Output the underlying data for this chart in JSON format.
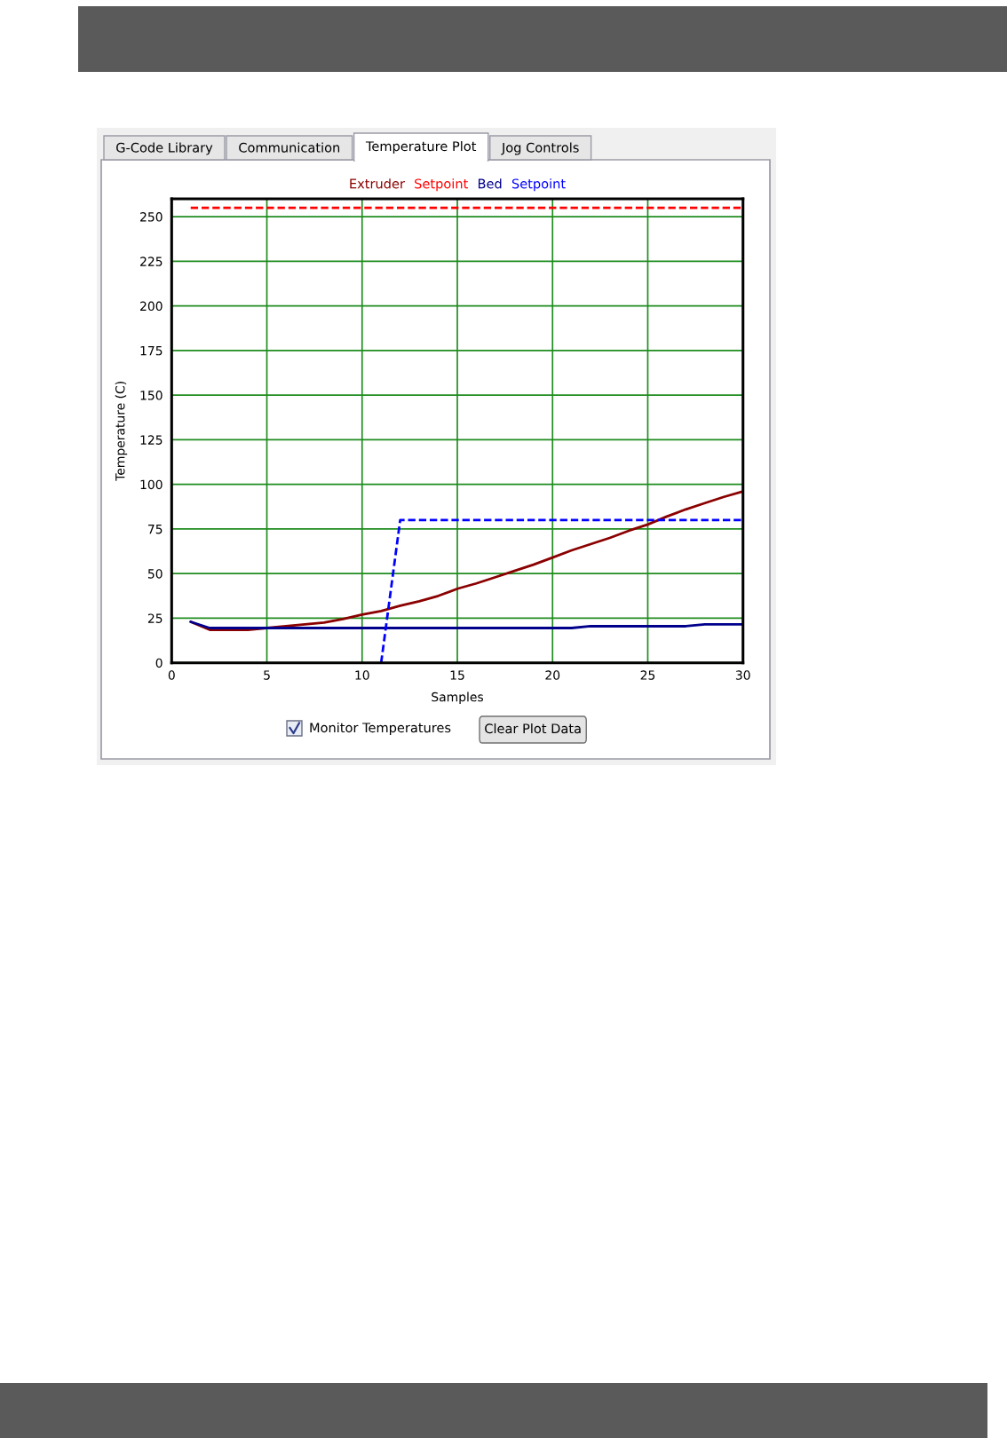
{
  "chart_data": {
    "type": "line",
    "xlabel": "Samples",
    "ylabel": "Temperature (C)",
    "xlim": [
      0,
      30
    ],
    "ylim": [
      0,
      260
    ],
    "xticks": [
      0,
      5,
      10,
      15,
      20,
      25,
      30
    ],
    "yticks": [
      0,
      25,
      50,
      75,
      100,
      125,
      150,
      175,
      200,
      225,
      250
    ],
    "grid": true,
    "legend": "top",
    "annotations": [
      "G-Code Library",
      "Communication",
      "Temperature Plot",
      "Jog Controls",
      "Monitor Temperatures",
      "Clear Plot Data"
    ],
    "series": [
      {
        "name": "Extruder",
        "color": "#8b0000",
        "line_style": "solid",
        "x": [
          1,
          2,
          3,
          4,
          5,
          6,
          7,
          8,
          9,
          10,
          11,
          12,
          13,
          14,
          15,
          16,
          17,
          18,
          19,
          20,
          21,
          22,
          23,
          24,
          25,
          26,
          27,
          28,
          29,
          30
        ],
        "values": [
          23,
          18.5,
          18.5,
          18.5,
          19.5,
          20.5,
          21.5,
          22.5,
          24.5,
          27,
          29,
          32,
          34.5,
          37.5,
          41.5,
          44.5,
          48,
          51.5,
          55,
          59,
          63,
          66.5,
          70,
          74,
          77.5,
          82,
          86,
          89.5,
          93,
          96
        ]
      },
      {
        "name": "Setpoint",
        "color": "#ff0000",
        "line_style": "dashed",
        "x": [
          1,
          2,
          3,
          4,
          5,
          6,
          7,
          8,
          9,
          10,
          11,
          12,
          13,
          14,
          15,
          16,
          17,
          18,
          19,
          20,
          21,
          22,
          23,
          24,
          25,
          26,
          27,
          28,
          29,
          30
        ],
        "values": [
          255,
          255,
          255,
          255,
          255,
          255,
          255,
          255,
          255,
          255,
          255,
          255,
          255,
          255,
          255,
          255,
          255,
          255,
          255,
          255,
          255,
          255,
          255,
          255,
          255,
          255,
          255,
          255,
          255,
          255
        ]
      },
      {
        "name": "Bed",
        "color": "#00008b",
        "line_style": "solid",
        "x": [
          1,
          2,
          3,
          4,
          5,
          6,
          7,
          8,
          9,
          10,
          11,
          12,
          13,
          14,
          15,
          16,
          17,
          18,
          19,
          20,
          21,
          22,
          23,
          24,
          25,
          26,
          27,
          28,
          29,
          30
        ],
        "values": [
          23,
          19.5,
          19.5,
          19.5,
          19.5,
          19.5,
          19.5,
          19.5,
          19.5,
          19.5,
          19.5,
          19.5,
          19.5,
          19.5,
          19.5,
          19.5,
          19.5,
          19.5,
          19.5,
          19.5,
          19.5,
          20.5,
          20.5,
          20.5,
          20.5,
          20.5,
          20.5,
          21.5,
          21.5,
          21.5
        ]
      },
      {
        "name": "Setpoint",
        "color": "#0000ff",
        "line_style": "dashed",
        "x": [
          11,
          12,
          13,
          14,
          15,
          16,
          17,
          18,
          19,
          20,
          21,
          22,
          23,
          24,
          25,
          26,
          27,
          28,
          29,
          30
        ],
        "values": [
          0,
          80,
          80,
          80,
          80,
          80,
          80,
          80,
          80,
          80,
          80,
          80,
          80,
          80,
          80,
          80,
          80,
          80,
          80,
          80
        ]
      }
    ]
  }
}
